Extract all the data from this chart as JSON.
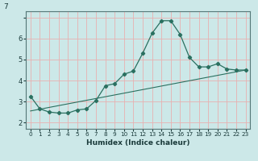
{
  "title": "",
  "xlabel": "Humidex (Indice chaleur)",
  "bg_color": "#cce8e8",
  "grid_color": "#e8b0b0",
  "line_color": "#2a7060",
  "xlim": [
    -0.5,
    23.5
  ],
  "ylim": [
    1.7,
    7.3
  ],
  "xticks": [
    0,
    1,
    2,
    3,
    4,
    5,
    6,
    7,
    8,
    9,
    10,
    11,
    12,
    13,
    14,
    15,
    16,
    17,
    18,
    19,
    20,
    21,
    22,
    23
  ],
  "yticks": [
    2,
    3,
    4,
    5,
    6,
    7
  ],
  "main_x": [
    0,
    1,
    2,
    3,
    4,
    5,
    6,
    7,
    8,
    9,
    10,
    11,
    12,
    13,
    14,
    15,
    16,
    17,
    18,
    19,
    20,
    21,
    22,
    23
  ],
  "main_y": [
    3.25,
    2.65,
    2.5,
    2.45,
    2.45,
    2.6,
    2.65,
    3.05,
    3.75,
    3.85,
    4.3,
    4.45,
    5.3,
    6.25,
    6.85,
    6.85,
    6.2,
    5.1,
    4.65,
    4.65,
    4.8,
    4.55,
    4.5,
    4.5
  ],
  "trend_x": [
    0,
    23
  ],
  "trend_y": [
    2.55,
    4.5
  ],
  "top_label": "7"
}
